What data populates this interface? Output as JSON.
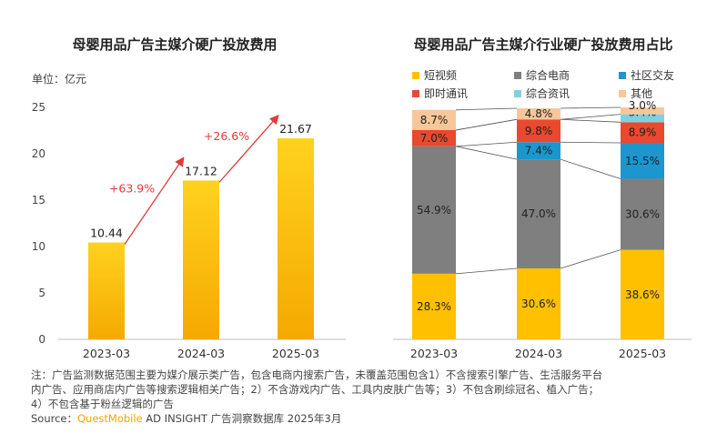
{
  "colors": {
    "bar_gradient_top": "#ffd21f",
    "bar_gradient_bottom": "#f5a900",
    "growth_arrow": "#e23a3a",
    "brand": "#f0a500"
  },
  "chart_data": [
    {
      "type": "bar",
      "title": "母婴用品广告主媒介硬广投放费用",
      "unit_label": "单位：亿元",
      "categories": [
        "2023-03",
        "2024-03",
        "2025-03"
      ],
      "values": [
        10.44,
        17.12,
        21.67
      ],
      "value_labels": [
        "10.44",
        "17.12",
        "21.67"
      ],
      "ylim": [
        0,
        25
      ],
      "yticks": [
        "0",
        "5",
        "10",
        "15",
        "20",
        "25"
      ],
      "grid": false,
      "growth_annotations": [
        {
          "from": "2023-03",
          "to": "2024-03",
          "label": "+63.9%"
        },
        {
          "from": "2024-03",
          "to": "2025-03",
          "label": "+26.6%"
        }
      ]
    },
    {
      "type": "bar",
      "stacked": true,
      "title": "母婴用品广告主媒介行业硬广投放费用占比",
      "categories": [
        "2023-03",
        "2024-03",
        "2025-03"
      ],
      "legend_position": "top",
      "series": [
        {
          "name": "短视频",
          "color": "#ffc000",
          "values": [
            28.3,
            30.6,
            38.6
          ],
          "labels": [
            "28.3%",
            "30.6%",
            "38.6%"
          ]
        },
        {
          "name": "综合电商",
          "color": "#7f7f7f",
          "values": [
            54.9,
            47.0,
            30.6
          ],
          "labels": [
            "54.9%",
            "47.0%",
            "30.6%"
          ]
        },
        {
          "name": "社区交友",
          "color": "#1b96cf",
          "values": [
            0,
            7.4,
            15.5
          ],
          "labels": [
            "",
            "7.4%",
            "15.5%"
          ]
        },
        {
          "name": "即时通讯",
          "color": "#e8492f",
          "values": [
            7.0,
            9.8,
            8.9
          ],
          "labels": [
            "7.0%",
            "9.8%",
            "8.9%"
          ]
        },
        {
          "name": "综合资讯",
          "color": "#7fd1de",
          "values": [
            0,
            0,
            3.4
          ],
          "labels": [
            "",
            "",
            "3.4%"
          ]
        },
        {
          "name": "其他",
          "color": "#f7c79a",
          "values": [
            8.7,
            4.8,
            3.0
          ],
          "labels": [
            "8.7%",
            "4.8%",
            "3.0%"
          ]
        }
      ]
    }
  ],
  "footer": {
    "note_lines": [
      "注：广告监测数据范围主要为媒介展示类广告，包含电商内搜索广告，未覆盖范围包含1）不含搜索引擎广告、生活服务平台",
      "内广告、应用商店内广告等搜索逻辑相关广告；2）不含游戏内广告、工具内皮肤广告等；3）不包含刷综冠名、植入广告；",
      "4）不包含基于粉丝逻辑的广告"
    ],
    "source_prefix": "Source：",
    "source_brand": "QuestMobile",
    "source_rest": " AD INSIGHT 广告洞察数据库 2025年3月"
  }
}
